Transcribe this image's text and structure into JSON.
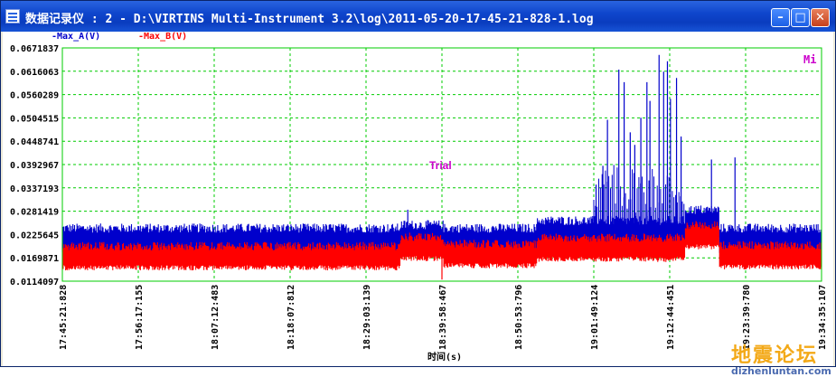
{
  "window": {
    "title": "数据记录仪 : 2 - D:\\VIRTINS Multi-Instrument 3.2\\log\\2011-05-20-17-45-21-828-1.log",
    "minimize_glyph": "–",
    "maximize_glyph": "□",
    "close_glyph": "✕"
  },
  "colors": {
    "series_a": "#0000cc",
    "series_b": "#ff0000",
    "grid": "#00cc00",
    "annotation": "#cc00cc"
  },
  "chart_data": {
    "type": "line",
    "series": [
      {
        "name": "-Max_A(V)",
        "color": "#0000cc"
      },
      {
        "name": "-Max_B(V)",
        "color": "#ff0000"
      }
    ],
    "ylim": [
      0.0114097,
      0.0671837
    ],
    "y_ticks": [
      "0.0671837",
      "0.0616063",
      "0.0560289",
      "0.0504515",
      "0.0448741",
      "0.0392967",
      "0.0337193",
      "0.0281419",
      "0.0225645",
      "0.0169871",
      "0.0114097"
    ],
    "x_ticks": [
      "17:45:21:828",
      "17:56:17:155",
      "18:07:12:483",
      "18:18:07:812",
      "18:29:03:139",
      "18:39:58:467",
      "18:50:53:796",
      "19:01:49:124",
      "19:12:44:451",
      "19:23:39:780",
      "19:34:35:107"
    ],
    "xlabel": "时间(s)",
    "annotation": "Trial",
    "corner_label": "Mi",
    "grid": true,
    "legend_placement": "top-left",
    "segments": [
      {
        "from": 0.0,
        "to": 0.445,
        "a_base": 0.0218,
        "b_base": 0.0178
      },
      {
        "from": 0.445,
        "to": 0.502,
        "a_base": 0.0226,
        "b_base": 0.02
      },
      {
        "from": 0.502,
        "to": 0.625,
        "a_base": 0.0218,
        "b_base": 0.0183
      },
      {
        "from": 0.625,
        "to": 0.82,
        "a_base": 0.0236,
        "b_base": 0.0198
      },
      {
        "from": 0.82,
        "to": 0.865,
        "a_base": 0.0262,
        "b_base": 0.0228
      },
      {
        "from": 0.865,
        "to": 1.0,
        "a_base": 0.0218,
        "b_base": 0.018
      }
    ],
    "a_spikes": [
      {
        "x": 0.703,
        "y": 0.0345
      },
      {
        "x": 0.712,
        "y": 0.039
      },
      {
        "x": 0.718,
        "y": 0.05
      },
      {
        "x": 0.733,
        "y": 0.062
      },
      {
        "x": 0.74,
        "y": 0.059
      },
      {
        "x": 0.748,
        "y": 0.047
      },
      {
        "x": 0.754,
        "y": 0.044
      },
      {
        "x": 0.762,
        "y": 0.0505
      },
      {
        "x": 0.77,
        "y": 0.059
      },
      {
        "x": 0.774,
        "y": 0.0545
      },
      {
        "x": 0.786,
        "y": 0.0655
      },
      {
        "x": 0.792,
        "y": 0.0615
      },
      {
        "x": 0.797,
        "y": 0.064
      },
      {
        "x": 0.801,
        "y": 0.055
      },
      {
        "x": 0.809,
        "y": 0.06
      },
      {
        "x": 0.815,
        "y": 0.046
      },
      {
        "x": 0.855,
        "y": 0.0405
      },
      {
        "x": 0.886,
        "y": 0.041
      },
      {
        "x": 0.455,
        "y": 0.0285
      }
    ]
  },
  "watermark": {
    "text": "地震论坛",
    "url": "dizhenluntan.com"
  }
}
